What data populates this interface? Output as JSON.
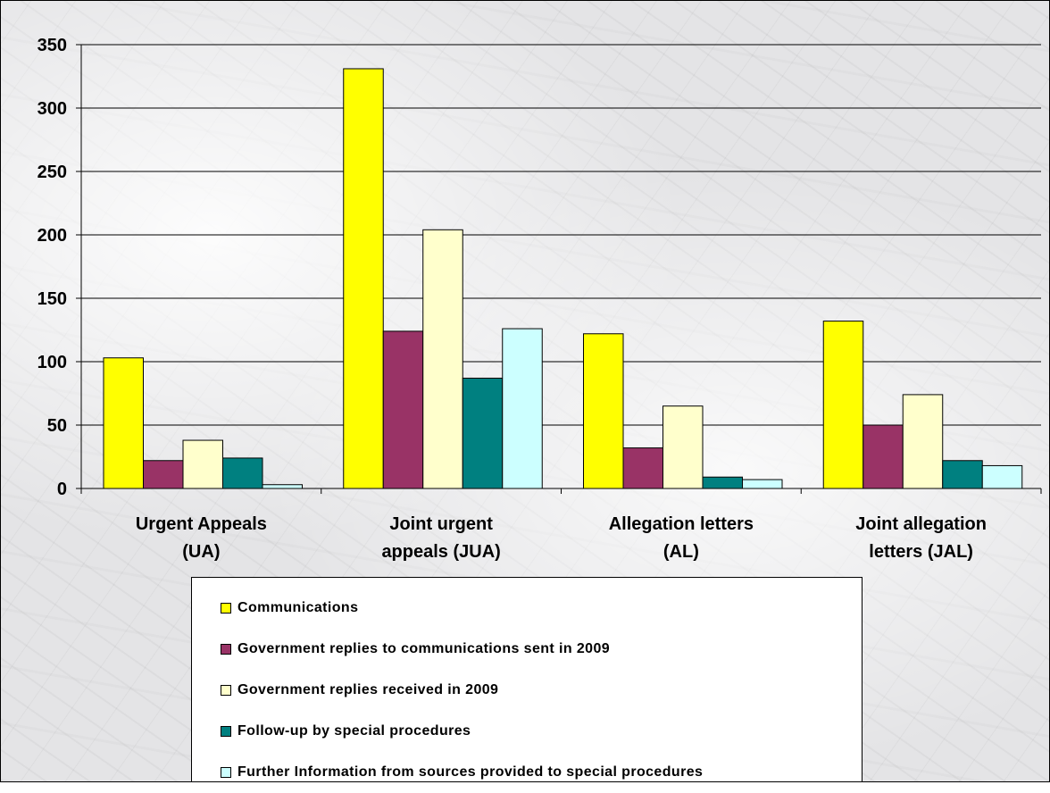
{
  "chart_data": {
    "type": "bar",
    "title": "",
    "xlabel": "",
    "ylabel": "",
    "ylim": [
      0,
      350
    ],
    "yticks": [
      0,
      50,
      100,
      150,
      200,
      250,
      300,
      350
    ],
    "grid": true,
    "legend_position": "bottom",
    "categories": [
      [
        "Urgent Appeals",
        "(UA)"
      ],
      [
        "Joint urgent",
        "appeals (JUA)"
      ],
      [
        "Allegation letters",
        "(AL)"
      ],
      [
        "Joint allegation",
        "letters (JAL)"
      ]
    ],
    "series": [
      {
        "name": "Communications",
        "color": "#ffff00",
        "values": [
          103,
          331,
          122,
          132
        ]
      },
      {
        "name": "Government replies to communications sent in 2009",
        "color": "#993366",
        "values": [
          22,
          124,
          32,
          50
        ]
      },
      {
        "name": "Government replies received in 2009",
        "color": "#ffffcc",
        "values": [
          38,
          204,
          65,
          74
        ]
      },
      {
        "name": "Follow-up by special procedures",
        "color": "#008080",
        "values": [
          24,
          87,
          9,
          22
        ]
      },
      {
        "name": "Further Information from sources provided to special procedures",
        "color": "#ccffff",
        "values": [
          3,
          126,
          7,
          18
        ]
      }
    ]
  }
}
